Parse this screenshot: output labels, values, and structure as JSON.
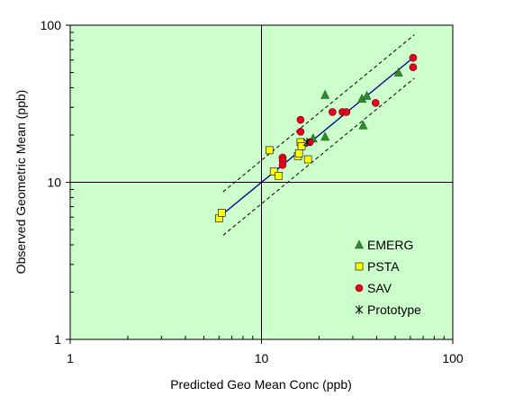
{
  "chart_data": {
    "type": "scatter",
    "xlabel": "Predicted Geo Mean Conc (ppb)",
    "ylabel": "Observed Geometric Mean (ppb)",
    "xscale": "log",
    "yscale": "log",
    "xlim": [
      1,
      100
    ],
    "ylim": [
      1,
      100
    ],
    "x_ticks": [
      "1",
      "10",
      "100"
    ],
    "y_ticks": [
      "1",
      "10",
      "100"
    ],
    "grid": "major lines at 10 on both axes",
    "background_color": "#ccffcc",
    "legend_position": "lower-right",
    "series": [
      {
        "name": "EMERG",
        "marker": "triangle",
        "color": "#2e8b2e",
        "points": [
          [
            21.5,
            36
          ],
          [
            18.6,
            19
          ],
          [
            21.5,
            19.5
          ],
          [
            33.5,
            34
          ],
          [
            35.5,
            35.5
          ],
          [
            34,
            23
          ],
          [
            52,
            50
          ]
        ]
      },
      {
        "name": "PSTA",
        "marker": "square",
        "color": "#ffff00",
        "points": [
          [
            6.0,
            5.9
          ],
          [
            6.2,
            6.4
          ],
          [
            11.0,
            16.0
          ],
          [
            11.6,
            11.7
          ],
          [
            12.3,
            11.0
          ],
          [
            15.5,
            14.7
          ],
          [
            15.7,
            15.3
          ],
          [
            16.0,
            18.0
          ],
          [
            16.2,
            17.0
          ],
          [
            17.5,
            14.0
          ]
        ]
      },
      {
        "name": "SAV",
        "marker": "circle",
        "color": "#e8001c",
        "points": [
          [
            12.9,
            14.4
          ],
          [
            12.9,
            13.8
          ],
          [
            12.9,
            12.9
          ],
          [
            16.0,
            25
          ],
          [
            16.0,
            21
          ],
          [
            17.9,
            18
          ],
          [
            23.5,
            28
          ],
          [
            26.5,
            28
          ],
          [
            27.8,
            28
          ],
          [
            39.5,
            32
          ],
          [
            62,
            62
          ],
          [
            62,
            54
          ]
        ]
      },
      {
        "name": "Prototype",
        "marker": "asterisk",
        "color": "#000000",
        "points": [
          [
            17.3,
            18.0
          ]
        ]
      }
    ],
    "fit_line": {
      "color": "#00008b",
      "x": [
        6.3,
        63
      ],
      "y": [
        6.3,
        63
      ]
    },
    "bounds": {
      "color": "#000000",
      "style": "dashed",
      "upper": {
        "x": [
          6.3,
          63
        ],
        "y": [
          8.7,
          87
        ]
      },
      "lower": {
        "x": [
          6.3,
          63
        ],
        "y": [
          4.6,
          46
        ]
      }
    }
  }
}
